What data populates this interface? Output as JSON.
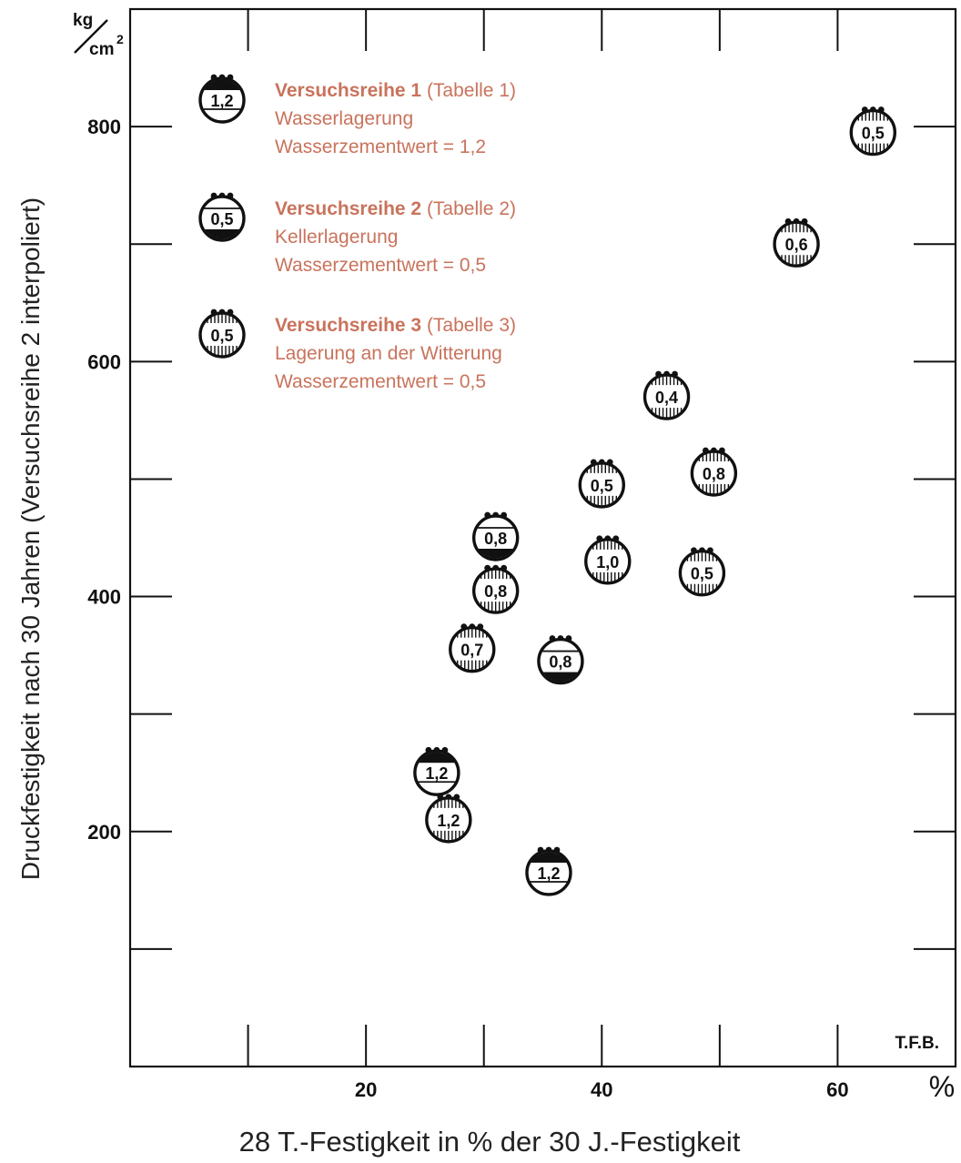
{
  "chart_data": {
    "type": "scatter",
    "xlabel": "28 T.-Festigkeit in % der 30 J.-Festigkeit",
    "ylabel": "Druckfestigkeit nach 30 Jahren (Versuchsreihe 2 interpoliert)",
    "x_unit": "%",
    "y_unit": "kg/cm²",
    "xlim": [
      0,
      70
    ],
    "ylim": [
      0,
      900
    ],
    "x_ticks": [
      10,
      20,
      30,
      40,
      50,
      60
    ],
    "x_tick_labels": [
      {
        "x": 20,
        "label": "20"
      },
      {
        "x": 40,
        "label": "40"
      },
      {
        "x": 60,
        "label": "60"
      }
    ],
    "y_ticks": [
      100,
      200,
      300,
      400,
      500,
      600,
      700,
      800
    ],
    "y_tick_labels": [
      {
        "y": 200,
        "label": "200"
      },
      {
        "y": 400,
        "label": "400"
      },
      {
        "y": 600,
        "label": "600"
      },
      {
        "y": 800,
        "label": "800"
      }
    ],
    "grid": false,
    "credit": "T.F.B.",
    "series": [
      {
        "name": "Versuchsreihe 1",
        "legend_bold": "Versuchsreihe 1",
        "legend_ref": "(Tabelle 1)",
        "legend_line2": "Wasserlagerung",
        "legend_line3": "Wasserzementwert = 1,2",
        "marker": "top-filled",
        "marker_label": "1,2",
        "points": [
          {
            "x": 26,
            "y": 250,
            "label": "1,2"
          },
          {
            "x": 35.5,
            "y": 165,
            "label": "1,2"
          }
        ]
      },
      {
        "name": "Versuchsreihe 2",
        "legend_bold": "Versuchsreihe 2",
        "legend_ref": "(Tabelle 2)",
        "legend_line2": "Kellerlagerung",
        "legend_line3": "Wasserzementwert = 0,5",
        "marker": "bottom-filled",
        "marker_label": "0,5",
        "points": [
          {
            "x": 31,
            "y": 450,
            "label": "0,8"
          },
          {
            "x": 36.5,
            "y": 345,
            "label": "0,8"
          }
        ]
      },
      {
        "name": "Versuchsreihe 3",
        "legend_bold": "Versuchsreihe 3",
        "legend_ref": "(Tabelle 3)",
        "legend_line2": "Lagerung an der Witterung",
        "legend_line3": "Wasserzementwert = 0,5",
        "marker": "hatched",
        "marker_label": "0,5",
        "points": [
          {
            "x": 63,
            "y": 795,
            "label": "0,5"
          },
          {
            "x": 56.5,
            "y": 700,
            "label": "0,6"
          },
          {
            "x": 45.5,
            "y": 570,
            "label": "0,4"
          },
          {
            "x": 49.5,
            "y": 505,
            "label": "0,8"
          },
          {
            "x": 40,
            "y": 495,
            "label": "0,5"
          },
          {
            "x": 40.5,
            "y": 430,
            "label": "1,0"
          },
          {
            "x": 48.5,
            "y": 420,
            "label": "0,5"
          },
          {
            "x": 31,
            "y": 405,
            "label": "0,8"
          },
          {
            "x": 29,
            "y": 355,
            "label": "0,7"
          },
          {
            "x": 27,
            "y": 210,
            "label": "1,2"
          }
        ]
      }
    ]
  }
}
